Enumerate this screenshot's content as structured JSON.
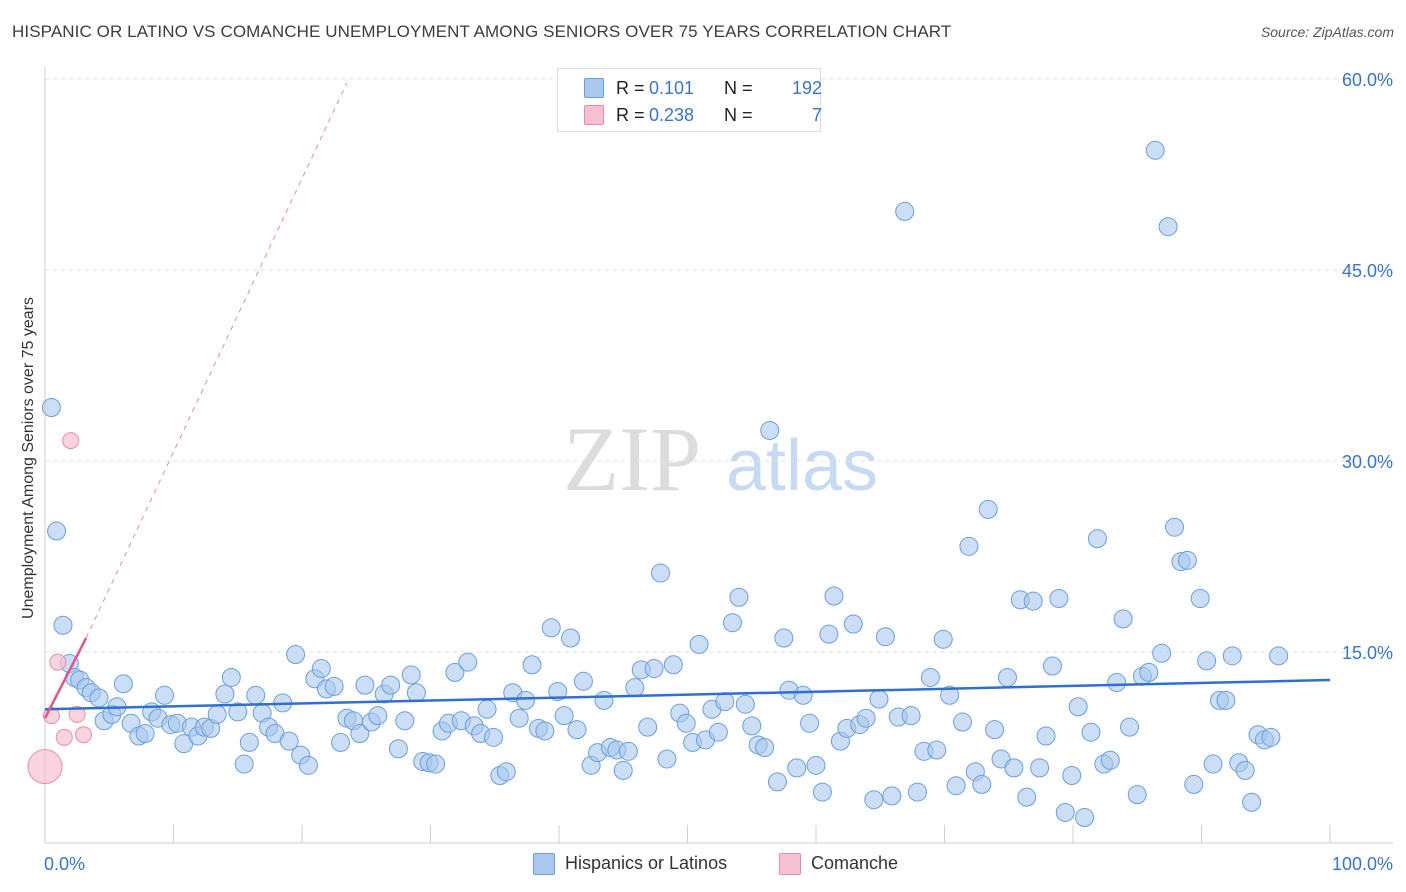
{
  "header": {
    "title": "HISPANIC OR LATINO VS COMANCHE UNEMPLOYMENT AMONG SENIORS OVER 75 YEARS CORRELATION CHART",
    "source": "Source: ZipAtlas.com"
  },
  "watermark": {
    "zip": "ZIP",
    "atlas": "atlas"
  },
  "legend": {
    "rows": [
      {
        "r_label": "R =",
        "r_value": "0.101",
        "n_label": "N =",
        "n_value": "192",
        "color": "#a8c8ef",
        "border": "#6a9fdc"
      },
      {
        "r_label": "R =",
        "r_value": "0.238",
        "n_label": "N =",
        "n_value": "7",
        "color": "#f7c0d0",
        "border": "#e78ca8"
      }
    ]
  },
  "bottom_legend": {
    "hispanic": "Hispanics or Latinos",
    "comanche": "Comanche"
  },
  "chart_data": {
    "type": "scatter",
    "title": "HISPANIC OR LATINO VS COMANCHE UNEMPLOYMENT AMONG SENIORS OVER 75 YEARS CORRELATION CHART",
    "xlabel": "",
    "ylabel": "Unemployment Among Seniors over 75 years",
    "xlim": [
      0,
      100
    ],
    "ylim": [
      0,
      60
    ],
    "x_tick_labels": [
      "0.0%",
      "100.0%"
    ],
    "y_ticks": [
      15,
      30,
      45,
      60
    ],
    "y_tick_labels": [
      "15.0%",
      "30.0%",
      "45.0%",
      "60.0%"
    ],
    "grid": true,
    "legend_placement": "top-center",
    "colors": {
      "hispanic_fill": "#a8c8ef",
      "hispanic_stroke": "#6a9fdc",
      "hispanic_line": "#2f6fd0",
      "comanche_fill": "#f7c0d0",
      "comanche_stroke": "#e78ca8",
      "comanche_line": "#e0568a",
      "tick_text": "#3a74c8"
    },
    "series": [
      {
        "name": "Hispanics or Latinos",
        "trend": {
          "x": [
            0,
            100
          ],
          "y": [
            10.5,
            12.8
          ]
        },
        "points": [
          [
            0.5,
            34.2
          ],
          [
            0.9,
            24.5
          ],
          [
            1.4,
            17.1
          ],
          [
            1.9,
            14.1
          ],
          [
            2.3,
            13.0
          ],
          [
            2.7,
            12.8
          ],
          [
            3.2,
            12.2
          ],
          [
            3.6,
            11.8
          ],
          [
            4.2,
            11.4
          ],
          [
            4.6,
            9.6
          ],
          [
            5.2,
            10.1
          ],
          [
            5.6,
            10.7
          ],
          [
            6.1,
            12.5
          ],
          [
            6.7,
            9.4
          ],
          [
            7.3,
            8.4
          ],
          [
            7.8,
            8.6
          ],
          [
            8.3,
            10.3
          ],
          [
            8.8,
            9.8
          ],
          [
            9.3,
            11.6
          ],
          [
            9.8,
            9.3
          ],
          [
            10.3,
            9.4
          ],
          [
            10.8,
            7.8
          ],
          [
            11.4,
            9.1
          ],
          [
            11.9,
            8.4
          ],
          [
            12.4,
            9.1
          ],
          [
            12.9,
            9.0
          ],
          [
            13.4,
            10.1
          ],
          [
            14.0,
            11.7
          ],
          [
            14.5,
            13.0
          ],
          [
            15.0,
            10.3
          ],
          [
            15.5,
            6.2
          ],
          [
            15.9,
            7.9
          ],
          [
            16.4,
            11.6
          ],
          [
            16.9,
            10.2
          ],
          [
            17.4,
            9.1
          ],
          [
            17.9,
            8.6
          ],
          [
            18.5,
            11.0
          ],
          [
            19.0,
            8.0
          ],
          [
            19.5,
            14.8
          ],
          [
            19.9,
            6.9
          ],
          [
            20.5,
            6.1
          ],
          [
            21.0,
            12.9
          ],
          [
            21.5,
            13.7
          ],
          [
            21.9,
            12.1
          ],
          [
            22.5,
            12.3
          ],
          [
            23.0,
            7.9
          ],
          [
            23.5,
            9.8
          ],
          [
            24.0,
            9.6
          ],
          [
            24.5,
            8.6
          ],
          [
            24.9,
            12.4
          ],
          [
            25.4,
            9.5
          ],
          [
            25.9,
            10.0
          ],
          [
            26.4,
            11.7
          ],
          [
            26.9,
            12.4
          ],
          [
            27.5,
            7.4
          ],
          [
            28.0,
            9.6
          ],
          [
            28.5,
            13.2
          ],
          [
            28.9,
            11.8
          ],
          [
            29.4,
            6.4
          ],
          [
            29.9,
            6.3
          ],
          [
            30.4,
            6.2
          ],
          [
            30.9,
            8.8
          ],
          [
            31.4,
            9.4
          ],
          [
            31.9,
            13.4
          ],
          [
            32.4,
            9.6
          ],
          [
            32.9,
            14.2
          ],
          [
            33.4,
            9.2
          ],
          [
            33.9,
            8.6
          ],
          [
            34.4,
            10.5
          ],
          [
            34.9,
            8.3
          ],
          [
            35.4,
            5.3
          ],
          [
            35.9,
            5.6
          ],
          [
            36.4,
            11.8
          ],
          [
            36.9,
            9.8
          ],
          [
            37.4,
            11.2
          ],
          [
            37.9,
            14.0
          ],
          [
            38.4,
            9.0
          ],
          [
            38.9,
            8.8
          ],
          [
            39.4,
            16.9
          ],
          [
            39.9,
            11.9
          ],
          [
            40.4,
            10.0
          ],
          [
            40.9,
            16.1
          ],
          [
            41.4,
            8.9
          ],
          [
            41.9,
            12.7
          ],
          [
            42.5,
            6.1
          ],
          [
            43.0,
            7.1
          ],
          [
            43.5,
            11.2
          ],
          [
            44.0,
            7.5
          ],
          [
            44.5,
            7.3
          ],
          [
            45.0,
            5.7
          ],
          [
            45.4,
            7.2
          ],
          [
            45.9,
            12.2
          ],
          [
            46.4,
            13.6
          ],
          [
            46.9,
            9.1
          ],
          [
            47.4,
            13.7
          ],
          [
            47.9,
            21.2
          ],
          [
            48.4,
            6.6
          ],
          [
            48.9,
            14.0
          ],
          [
            49.4,
            10.2
          ],
          [
            49.9,
            9.4
          ],
          [
            50.4,
            7.9
          ],
          [
            50.9,
            15.6
          ],
          [
            51.4,
            8.1
          ],
          [
            51.9,
            10.5
          ],
          [
            52.4,
            8.7
          ],
          [
            52.9,
            11.1
          ],
          [
            53.5,
            17.3
          ],
          [
            54.0,
            19.3
          ],
          [
            54.5,
            10.9
          ],
          [
            55.0,
            9.2
          ],
          [
            55.5,
            7.7
          ],
          [
            56.0,
            7.5
          ],
          [
            56.4,
            32.4
          ],
          [
            57.0,
            4.8
          ],
          [
            57.5,
            16.1
          ],
          [
            57.9,
            12.0
          ],
          [
            58.5,
            5.9
          ],
          [
            59.0,
            11.6
          ],
          [
            59.5,
            9.4
          ],
          [
            60.0,
            6.1
          ],
          [
            60.5,
            4.0
          ],
          [
            61.0,
            16.4
          ],
          [
            61.4,
            19.4
          ],
          [
            61.9,
            8.0
          ],
          [
            62.4,
            9.0
          ],
          [
            62.9,
            17.2
          ],
          [
            63.4,
            9.3
          ],
          [
            63.9,
            9.8
          ],
          [
            64.5,
            3.4
          ],
          [
            64.9,
            11.3
          ],
          [
            65.4,
            16.2
          ],
          [
            65.9,
            3.7
          ],
          [
            66.4,
            9.9
          ],
          [
            66.9,
            49.6
          ],
          [
            67.4,
            10.0
          ],
          [
            67.9,
            4.0
          ],
          [
            68.4,
            7.2
          ],
          [
            68.9,
            13.0
          ],
          [
            69.4,
            7.3
          ],
          [
            69.9,
            16.0
          ],
          [
            70.4,
            11.6
          ],
          [
            70.9,
            4.5
          ],
          [
            71.4,
            9.5
          ],
          [
            71.9,
            23.3
          ],
          [
            72.4,
            5.6
          ],
          [
            72.9,
            4.6
          ],
          [
            73.4,
            26.2
          ],
          [
            73.9,
            8.9
          ],
          [
            74.4,
            6.6
          ],
          [
            74.9,
            13.0
          ],
          [
            75.4,
            5.9
          ],
          [
            75.9,
            19.1
          ],
          [
            76.4,
            3.6
          ],
          [
            76.9,
            19.0
          ],
          [
            77.4,
            5.9
          ],
          [
            77.9,
            8.4
          ],
          [
            78.4,
            13.9
          ],
          [
            78.9,
            19.2
          ],
          [
            79.4,
            2.4
          ],
          [
            79.9,
            5.3
          ],
          [
            80.4,
            10.7
          ],
          [
            80.9,
            2.0
          ],
          [
            81.4,
            8.7
          ],
          [
            81.9,
            23.9
          ],
          [
            82.4,
            6.2
          ],
          [
            82.9,
            6.5
          ],
          [
            83.4,
            12.6
          ],
          [
            83.9,
            17.6
          ],
          [
            84.4,
            9.1
          ],
          [
            85.0,
            3.8
          ],
          [
            85.4,
            13.1
          ],
          [
            85.9,
            13.4
          ],
          [
            86.4,
            54.4
          ],
          [
            86.9,
            14.9
          ],
          [
            87.4,
            48.4
          ],
          [
            87.9,
            24.8
          ],
          [
            88.4,
            22.1
          ],
          [
            88.9,
            22.2
          ],
          [
            89.4,
            4.6
          ],
          [
            89.9,
            19.2
          ],
          [
            90.4,
            14.3
          ],
          [
            90.9,
            6.2
          ],
          [
            91.4,
            11.2
          ],
          [
            91.9,
            11.2
          ],
          [
            92.4,
            14.7
          ],
          [
            92.9,
            6.3
          ],
          [
            93.4,
            5.7
          ],
          [
            93.9,
            3.2
          ],
          [
            94.4,
            8.5
          ],
          [
            94.9,
            8.1
          ],
          [
            95.4,
            8.3
          ],
          [
            96.0,
            14.7
          ]
        ]
      },
      {
        "name": "Comanche",
        "trend_solid": {
          "x": [
            0,
            3.2
          ],
          "y": [
            9.8,
            16.1
          ]
        },
        "trend_dashed": {
          "x": [
            3.2,
            23.5
          ],
          "y": [
            16.1,
            59.7
          ]
        },
        "points": [
          [
            0.0,
            6.0
          ],
          [
            0.5,
            10.0
          ],
          [
            1.0,
            14.2
          ],
          [
            1.5,
            8.3
          ],
          [
            2.0,
            31.6
          ],
          [
            2.5,
            10.1
          ],
          [
            3.0,
            8.5
          ]
        ]
      }
    ]
  }
}
